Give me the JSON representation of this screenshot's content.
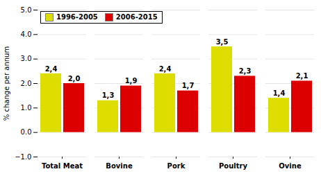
{
  "chart_data": {
    "type": "bar",
    "categories": [
      "Total Meat",
      "Bovine",
      "Pork",
      "Poultry",
      "Ovine"
    ],
    "series": [
      {
        "name": "1996-2005",
        "color": "#dddd00",
        "values": [
          2.4,
          1.3,
          2.4,
          3.5,
          1.4
        ],
        "value_labels": [
          "2,4",
          "1,3",
          "2,4",
          "3,5",
          "1,4"
        ]
      },
      {
        "name": "2006-2015",
        "color": "#dd0000",
        "values": [
          2.0,
          1.9,
          1.7,
          2.3,
          2.1
        ],
        "value_labels": [
          "2,0",
          "1,9",
          "1,7",
          "2,3",
          "2,1"
        ]
      }
    ],
    "ylabel": "% change per annum",
    "ylim": [
      -1,
      5
    ],
    "yticks": [
      -1,
      0,
      1,
      2,
      3,
      4,
      5
    ],
    "grid": true,
    "legend": "upper left",
    "data_labels": true
  }
}
